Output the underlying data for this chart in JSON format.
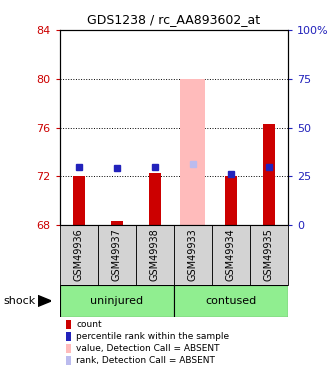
{
  "title": "GDS1238 / rc_AA893602_at",
  "samples": [
    "GSM49936",
    "GSM49937",
    "GSM49938",
    "GSM49933",
    "GSM49934",
    "GSM49935"
  ],
  "ylim": [
    68,
    84
  ],
  "yticks_left": [
    68,
    72,
    76,
    80,
    84
  ],
  "yticks_right": [
    0,
    25,
    50,
    75,
    100
  ],
  "yticks_right_vals": [
    68,
    72,
    76,
    80,
    84
  ],
  "bar_values": [
    72.0,
    68.3,
    72.3,
    null,
    72.0,
    76.3
  ],
  "rank_values": [
    72.8,
    72.7,
    72.8,
    null,
    72.2,
    72.8
  ],
  "absent_bar_value": 80.0,
  "absent_rank_value": 73.0,
  "absent_index": 3,
  "bar_color": "#cc0000",
  "rank_color": "#2222bb",
  "absent_bar_color": "#ffbbbb",
  "absent_rank_color": "#bbbbee",
  "bar_width": 0.32,
  "absent_bar_width": 0.65,
  "rank_marker_size": 4,
  "left_color": "#cc0000",
  "right_color": "#2222bb",
  "dotted_gridlines": [
    72,
    76,
    80
  ],
  "group_factor": "shock",
  "uninjured_samples": [
    0,
    1,
    2
  ],
  "contused_samples": [
    3,
    4,
    5
  ],
  "group_bg": "#90ee90",
  "sample_bg": "#d3d3d3",
  "legend_items": [
    {
      "color": "#cc0000",
      "label": "count"
    },
    {
      "color": "#2222bb",
      "label": "percentile rank within the sample"
    },
    {
      "color": "#ffbbbb",
      "label": "value, Detection Call = ABSENT"
    },
    {
      "color": "#bbbbee",
      "label": "rank, Detection Call = ABSENT"
    }
  ]
}
